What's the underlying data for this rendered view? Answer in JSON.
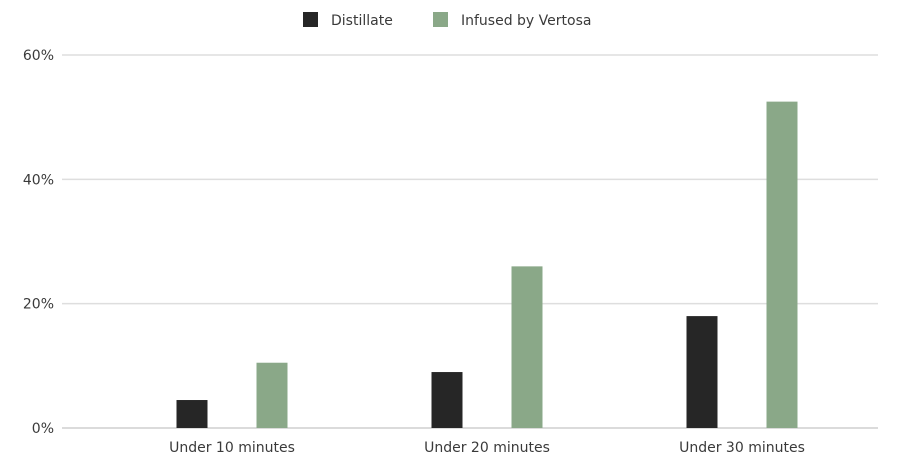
{
  "chart_data": {
    "type": "bar",
    "categories": [
      "Under 10 minutes",
      "Under 20 minutes",
      "Under 30 minutes"
    ],
    "series": [
      {
        "name": "Distillate",
        "color": "#262626",
        "values": [
          4.5,
          9,
          18
        ]
      },
      {
        "name": "Infused by Vertosa",
        "color": "#8aa888",
        "values": [
          10.5,
          26,
          52.5
        ]
      }
    ],
    "ylim": [
      0,
      60
    ],
    "yticks": [
      0,
      20,
      40,
      60
    ],
    "ytick_labels": [
      "0%",
      "20%",
      "40%",
      "60%"
    ],
    "grid": true,
    "legend_position": "top-center"
  }
}
